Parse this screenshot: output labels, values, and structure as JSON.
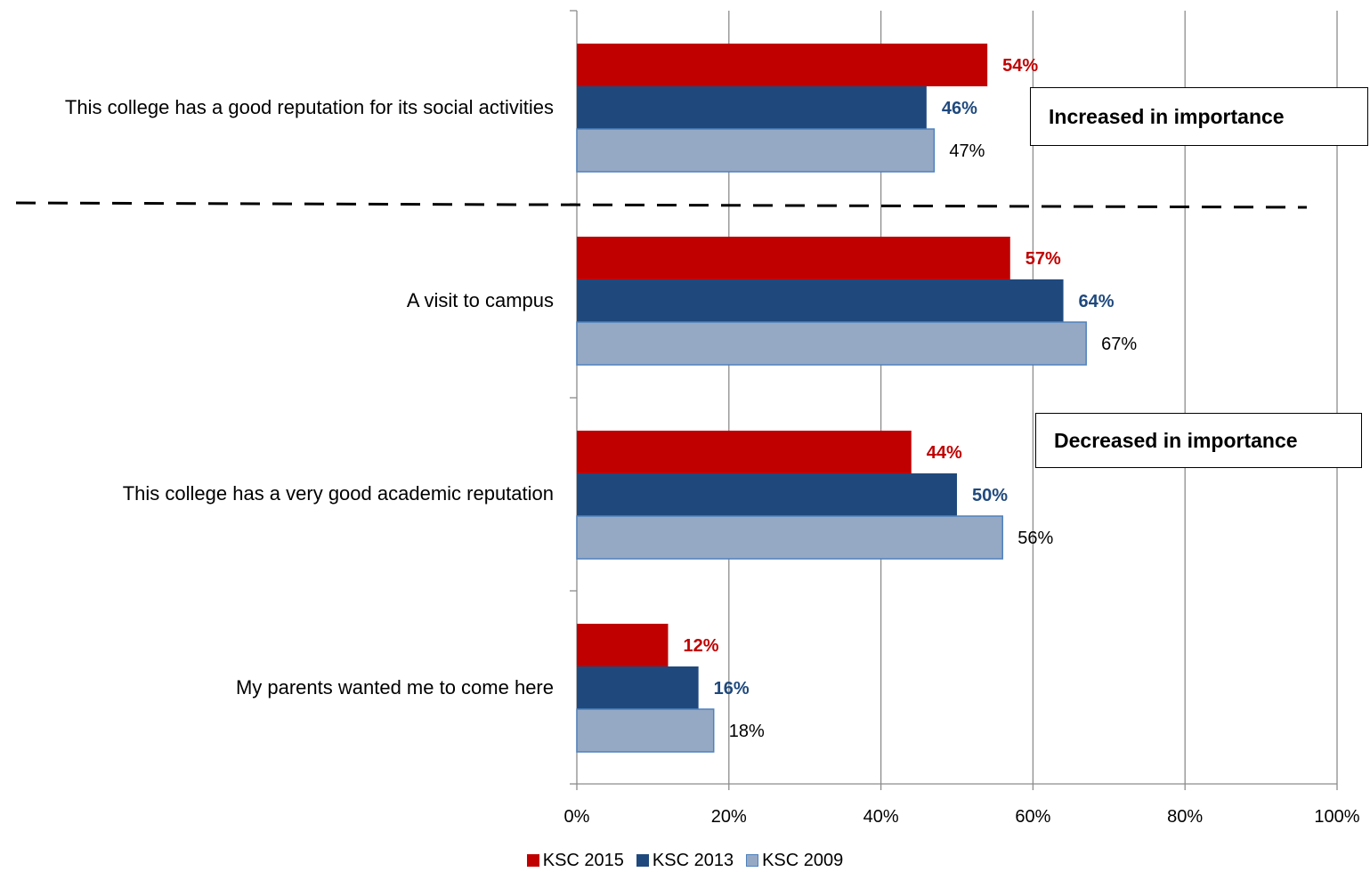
{
  "chart_data": {
    "type": "bar",
    "orientation": "horizontal",
    "categories": [
      "This college has a good reputation for its social activities",
      "A visit to campus",
      "This college has a very good academic reputation",
      "My parents wanted me to come here"
    ],
    "series": [
      {
        "name": "KSC 2015",
        "values": [
          54,
          57,
          44,
          12
        ],
        "labels": [
          "54%",
          "57%",
          "44%",
          "12%"
        ],
        "color": "#C00000",
        "label_color": "#C00000",
        "label_bold": true
      },
      {
        "name": "KSC 2013",
        "values": [
          46,
          64,
          50,
          16
        ],
        "labels": [
          "46%",
          "64%",
          "50%",
          "16%"
        ],
        "color": "#1F497D",
        "label_color": "#1F497D",
        "label_bold": true
      },
      {
        "name": "KSC 2009",
        "values": [
          47,
          67,
          56,
          18
        ],
        "labels": [
          "47%",
          "67%",
          "56%",
          "18%"
        ],
        "color": "#95A9C5",
        "label_color": "#000000",
        "label_bold": false,
        "border": "#4F81BD"
      }
    ],
    "xlim": [
      0,
      100
    ],
    "xticks": [
      0,
      20,
      40,
      60,
      80,
      100
    ],
    "xtick_labels": [
      "0%",
      "20%",
      "40%",
      "60%",
      "80%",
      "100%"
    ],
    "grid": "vertical",
    "legend_position": "bottom",
    "annotations": [
      {
        "text": "Increased in importance"
      },
      {
        "text": "Decreased in importance"
      }
    ]
  }
}
